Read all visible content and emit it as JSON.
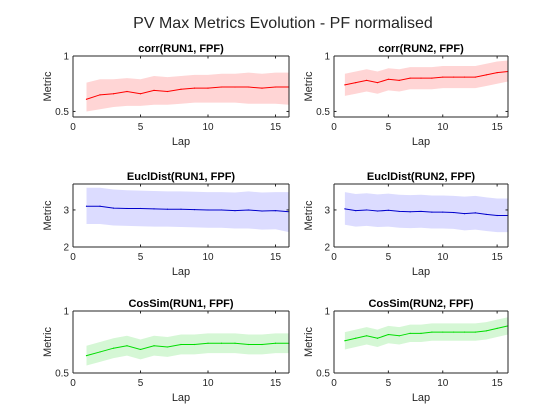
{
  "figure": {
    "title": "PV Max Metrics Evolution - PF normalised"
  },
  "chart_data": [
    {
      "type": "line",
      "title": "corr(RUN1, FPF)",
      "xlabel": "Lap",
      "ylabel": "Metric",
      "xlim": [
        0,
        16
      ],
      "ylim": [
        0.45,
        1.0
      ],
      "xticks": [
        0,
        5,
        10,
        15
      ],
      "yticks": [
        0.5,
        1
      ],
      "color": "#ff0000",
      "band_color": "#ffd5d5",
      "x": [
        1,
        2,
        3,
        4,
        5,
        6,
        7,
        8,
        9,
        10,
        11,
        12,
        13,
        14,
        15,
        16
      ],
      "values": [
        0.61,
        0.65,
        0.66,
        0.68,
        0.66,
        0.69,
        0.68,
        0.7,
        0.71,
        0.71,
        0.72,
        0.72,
        0.72,
        0.71,
        0.72,
        0.72
      ],
      "lower": [
        0.5,
        0.52,
        0.54,
        0.55,
        0.55,
        0.56,
        0.56,
        0.57,
        0.58,
        0.58,
        0.58,
        0.58,
        0.57,
        0.57,
        0.57,
        0.56
      ],
      "upper": [
        0.76,
        0.79,
        0.79,
        0.8,
        0.79,
        0.82,
        0.81,
        0.82,
        0.83,
        0.83,
        0.84,
        0.84,
        0.85,
        0.84,
        0.85,
        0.85
      ]
    },
    {
      "type": "line",
      "title": "corr(RUN2, FPF)",
      "xlabel": "Lap",
      "ylabel": "Metric",
      "xlim": [
        0,
        16
      ],
      "ylim": [
        0.45,
        1.0
      ],
      "xticks": [
        0,
        5,
        10,
        15
      ],
      "yticks": [
        0.5,
        1
      ],
      "color": "#ff0000",
      "band_color": "#ffd5d5",
      "x": [
        1,
        2,
        3,
        4,
        5,
        6,
        7,
        8,
        9,
        10,
        11,
        12,
        13,
        14,
        15,
        16
      ],
      "values": [
        0.74,
        0.76,
        0.78,
        0.76,
        0.79,
        0.78,
        0.8,
        0.8,
        0.8,
        0.81,
        0.81,
        0.81,
        0.81,
        0.83,
        0.85,
        0.86
      ],
      "lower": [
        0.64,
        0.66,
        0.68,
        0.66,
        0.69,
        0.68,
        0.7,
        0.7,
        0.7,
        0.71,
        0.71,
        0.71,
        0.71,
        0.73,
        0.75,
        0.77
      ],
      "upper": [
        0.84,
        0.86,
        0.88,
        0.86,
        0.89,
        0.88,
        0.9,
        0.9,
        0.9,
        0.91,
        0.91,
        0.91,
        0.91,
        0.93,
        0.95,
        0.96
      ]
    },
    {
      "type": "line",
      "title": "EuclDist(RUN1, FPF)",
      "xlabel": "Lap",
      "ylabel": "Metric",
      "xlim": [
        0,
        16
      ],
      "ylim": [
        2.0,
        3.7
      ],
      "xticks": [
        0,
        5,
        10,
        15
      ],
      "yticks": [
        2,
        3
      ],
      "color": "#0000cc",
      "band_color": "#dcdcff",
      "x": [
        1,
        2,
        3,
        4,
        5,
        6,
        7,
        8,
        9,
        10,
        11,
        12,
        13,
        14,
        15,
        16
      ],
      "values": [
        3.1,
        3.1,
        3.05,
        3.04,
        3.04,
        3.03,
        3.02,
        3.02,
        3.01,
        3.0,
        3.0,
        2.98,
        3.0,
        2.97,
        2.98,
        2.95
      ],
      "lower": [
        2.62,
        2.62,
        2.58,
        2.57,
        2.56,
        2.55,
        2.55,
        2.54,
        2.53,
        2.52,
        2.52,
        2.5,
        2.5,
        2.47,
        2.48,
        2.4
      ],
      "upper": [
        3.6,
        3.6,
        3.55,
        3.53,
        3.52,
        3.51,
        3.5,
        3.5,
        3.49,
        3.48,
        3.48,
        3.47,
        3.5,
        3.47,
        3.48,
        3.48
      ]
    },
    {
      "type": "line",
      "title": "EuclDist(RUN2, FPF)",
      "xlabel": "Lap",
      "ylabel": "Metric",
      "xlim": [
        0,
        16
      ],
      "ylim": [
        2.0,
        3.7
      ],
      "xticks": [
        0,
        5,
        10,
        15
      ],
      "yticks": [
        2,
        3
      ],
      "color": "#0000cc",
      "band_color": "#dcdcff",
      "x": [
        1,
        2,
        3,
        4,
        5,
        6,
        7,
        8,
        9,
        10,
        11,
        12,
        13,
        14,
        15,
        16
      ],
      "values": [
        3.03,
        2.98,
        3.0,
        2.97,
        2.99,
        2.96,
        2.95,
        2.96,
        2.94,
        2.94,
        2.93,
        2.9,
        2.92,
        2.88,
        2.85,
        2.85
      ],
      "lower": [
        2.6,
        2.55,
        2.57,
        2.54,
        2.55,
        2.52,
        2.51,
        2.52,
        2.5,
        2.5,
        2.49,
        2.45,
        2.47,
        2.43,
        2.4,
        2.4
      ],
      "upper": [
        3.48,
        3.43,
        3.45,
        3.42,
        3.44,
        3.41,
        3.4,
        3.41,
        3.39,
        3.39,
        3.38,
        3.36,
        3.38,
        3.34,
        3.31,
        3.31
      ]
    },
    {
      "type": "line",
      "title": "CosSim(RUN1, FPF)",
      "xlabel": "Lap",
      "ylabel": "Metric",
      "xlim": [
        0,
        16
      ],
      "ylim": [
        0.5,
        1.0
      ],
      "xticks": [
        0,
        5,
        10,
        15
      ],
      "yticks": [
        0.5,
        1
      ],
      "color": "#00dd00",
      "band_color": "#d5f7d5",
      "x": [
        1,
        2,
        3,
        4,
        5,
        6,
        7,
        8,
        9,
        10,
        11,
        12,
        13,
        14,
        15,
        16
      ],
      "values": [
        0.64,
        0.67,
        0.7,
        0.72,
        0.69,
        0.72,
        0.71,
        0.73,
        0.73,
        0.74,
        0.74,
        0.74,
        0.73,
        0.73,
        0.74,
        0.74
      ],
      "lower": [
        0.56,
        0.59,
        0.62,
        0.64,
        0.61,
        0.64,
        0.63,
        0.65,
        0.65,
        0.66,
        0.66,
        0.66,
        0.65,
        0.65,
        0.66,
        0.66
      ],
      "upper": [
        0.72,
        0.75,
        0.78,
        0.8,
        0.77,
        0.8,
        0.79,
        0.81,
        0.81,
        0.82,
        0.82,
        0.82,
        0.81,
        0.81,
        0.82,
        0.82
      ]
    },
    {
      "type": "line",
      "title": "CosSim(RUN2, FPF)",
      "xlabel": "Lap",
      "ylabel": "Metric",
      "xlim": [
        0,
        16
      ],
      "ylim": [
        0.5,
        1.0
      ],
      "xticks": [
        0,
        5,
        10,
        15
      ],
      "yticks": [
        0.5,
        1
      ],
      "color": "#00dd00",
      "band_color": "#d5f7d5",
      "x": [
        1,
        2,
        3,
        4,
        5,
        6,
        7,
        8,
        9,
        10,
        11,
        12,
        13,
        14,
        15,
        16
      ],
      "values": [
        0.76,
        0.78,
        0.8,
        0.78,
        0.81,
        0.8,
        0.82,
        0.82,
        0.83,
        0.83,
        0.83,
        0.83,
        0.83,
        0.84,
        0.86,
        0.88
      ],
      "lower": [
        0.69,
        0.71,
        0.73,
        0.71,
        0.74,
        0.73,
        0.75,
        0.75,
        0.76,
        0.76,
        0.76,
        0.76,
        0.76,
        0.77,
        0.79,
        0.81
      ],
      "upper": [
        0.83,
        0.85,
        0.87,
        0.85,
        0.88,
        0.87,
        0.89,
        0.89,
        0.9,
        0.9,
        0.9,
        0.9,
        0.9,
        0.91,
        0.93,
        0.95
      ]
    }
  ]
}
